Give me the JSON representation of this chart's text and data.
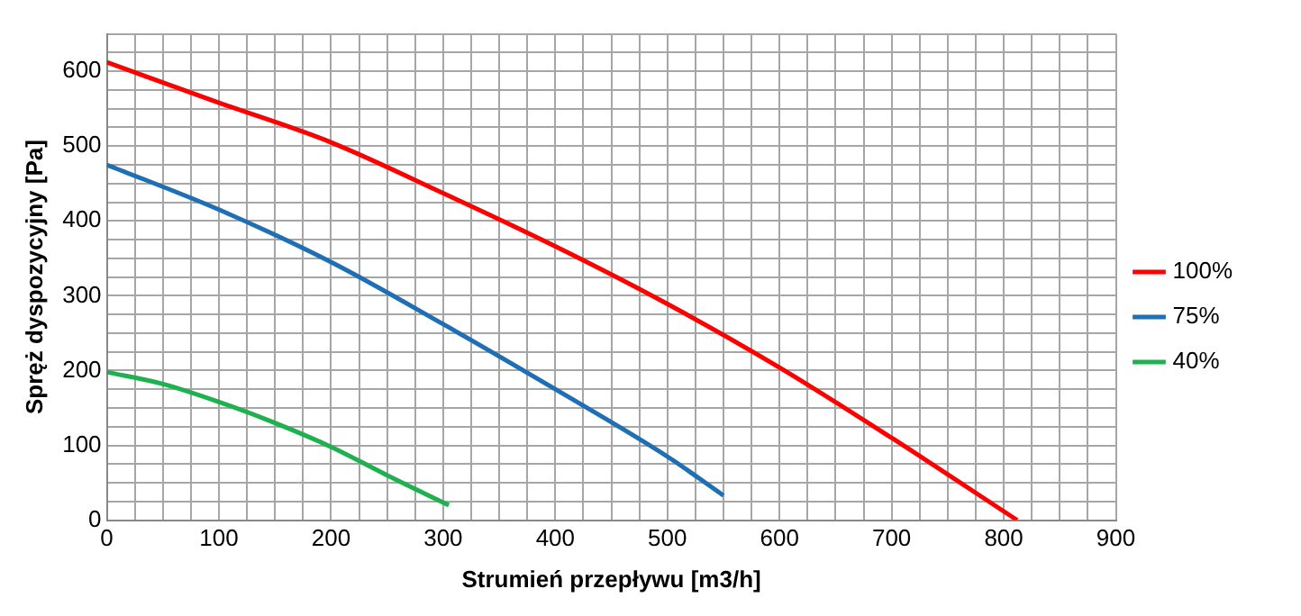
{
  "chart_data": {
    "type": "line",
    "xlabel": "Strumień przepływu [m3/h]",
    "ylabel": "Spręż dyspozycyjny [Pa]",
    "xlim": [
      0,
      900
    ],
    "ylim": [
      0,
      650
    ],
    "xticks": [
      0,
      {
        "value": 25,
        "label": null
      },
      {
        "value": 50,
        "label": null
      },
      {
        "value": 75,
        "label": null
      },
      100,
      {
        "value": 125,
        "label": null
      },
      {
        "value": 150,
        "label": null
      },
      {
        "value": 175,
        "label": null
      },
      200,
      {
        "value": 225,
        "label": null
      },
      {
        "value": 250,
        "label": null
      },
      {
        "value": 275,
        "label": null
      },
      300,
      {
        "value": 325,
        "label": null
      },
      {
        "value": 350,
        "label": null
      },
      {
        "value": 375,
        "label": null
      },
      400,
      {
        "value": 425,
        "label": null
      },
      {
        "value": 450,
        "label": null
      },
      {
        "value": 475,
        "label": null
      },
      500,
      {
        "value": 525,
        "label": null
      },
      {
        "value": 550,
        "label": null
      },
      {
        "value": 575,
        "label": null
      },
      600,
      {
        "value": 625,
        "label": null
      },
      {
        "value": 650,
        "label": null
      },
      {
        "value": 675,
        "label": null
      },
      700,
      {
        "value": 725,
        "label": null
      },
      {
        "value": 750,
        "label": null
      },
      {
        "value": 775,
        "label": null
      },
      800,
      {
        "value": 825,
        "label": null
      },
      {
        "value": 850,
        "label": null
      },
      {
        "value": 875,
        "label": null
      },
      900
    ],
    "yticks": [
      0,
      {
        "value": 25,
        "label": null
      },
      {
        "value": 50,
        "label": null
      },
      {
        "value": 75,
        "label": null
      },
      100,
      {
        "value": 125,
        "label": null
      },
      {
        "value": 150,
        "label": null
      },
      {
        "value": 175,
        "label": null
      },
      200,
      {
        "value": 225,
        "label": null
      },
      {
        "value": 250,
        "label": null
      },
      {
        "value": 275,
        "label": null
      },
      300,
      {
        "value": 325,
        "label": null
      },
      {
        "value": 350,
        "label": null
      },
      {
        "value": 375,
        "label": null
      },
      400,
      {
        "value": 425,
        "label": null
      },
      {
        "value": 450,
        "label": null
      },
      {
        "value": 475,
        "label": null
      },
      500,
      {
        "value": 525,
        "label": null
      },
      {
        "value": 550,
        "label": null
      },
      {
        "value": 575,
        "label": null
      },
      600,
      {
        "value": 625,
        "label": null
      },
      {
        "value": 650,
        "label": null
      }
    ],
    "grid": true,
    "legend": "right",
    "marker": "none",
    "line_style": "solid",
    "series": [
      {
        "name": "100%",
        "color": "#ff0000",
        "x": [
          0,
          100,
          200,
          300,
          400,
          500,
          600,
          700,
          812
        ],
        "values": [
          612,
          558,
          505,
          437,
          366,
          289,
          204,
          110,
          0
        ]
      },
      {
        "name": "75%",
        "color": "#1f6fb5",
        "x": [
          0,
          100,
          200,
          300,
          400,
          500,
          550
        ],
        "values": [
          475,
          415,
          345,
          262,
          175,
          85,
          33
        ]
      },
      {
        "name": "40%",
        "color": "#1fb04f",
        "x": [
          0,
          50,
          100,
          150,
          200,
          250,
          305
        ],
        "values": [
          198,
          182,
          158,
          130,
          98,
          60,
          20
        ]
      }
    ]
  }
}
